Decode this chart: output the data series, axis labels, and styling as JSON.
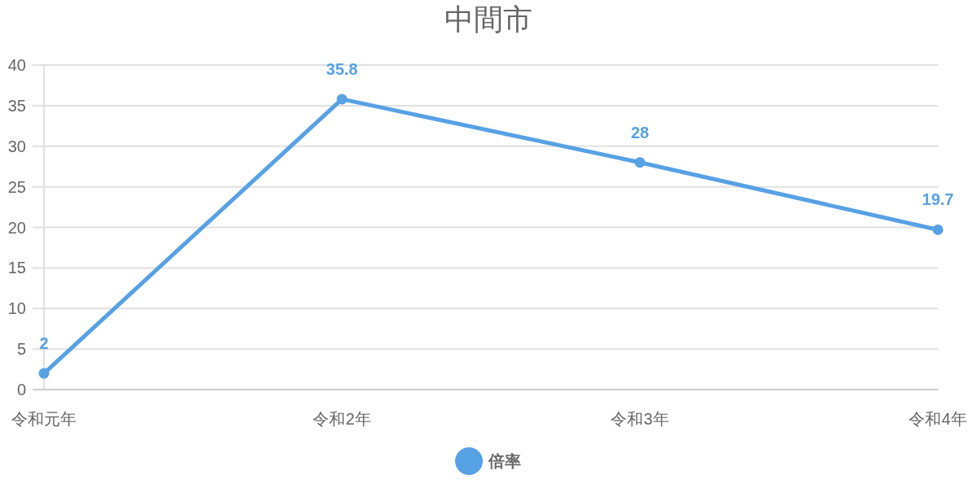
{
  "chart_data": {
    "type": "line",
    "title": "中間市",
    "categories": [
      "令和元年",
      "令和2年",
      "令和3年",
      "令和4年"
    ],
    "series": [
      {
        "name": "倍率",
        "color": "#57a1e5",
        "values": [
          2,
          35.8,
          28,
          19.7
        ]
      }
    ],
    "ylim": [
      0,
      40
    ],
    "yticks": [
      0,
      5,
      10,
      15,
      20,
      25,
      30,
      35,
      40
    ],
    "grid": "y",
    "legend": "bottom",
    "marker": "circle",
    "line_style": "solid",
    "data_labels": true
  }
}
